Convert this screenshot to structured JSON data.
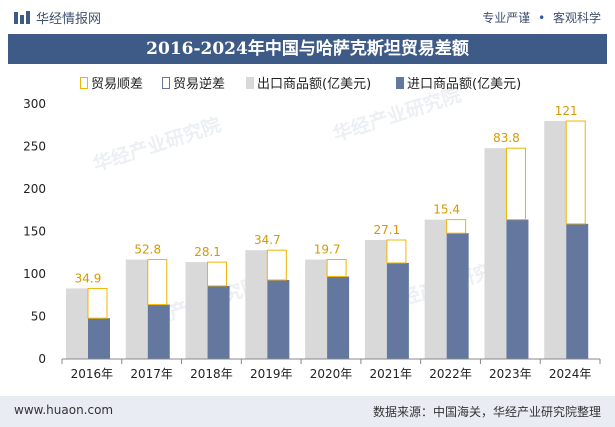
{
  "header": {
    "brand": "华经情报网",
    "tagline_left": "专业严谨",
    "tagline_right": "客观科学"
  },
  "watermark": "华经产业研究院",
  "footer": {
    "url": "www.huaon.com",
    "source": "数据来源：中国海关，华经产业研究院整理"
  },
  "colors": {
    "export": "#d9d9d9",
    "import": "#64789f",
    "surplus": "#f0b400",
    "deficit": "#64789f",
    "title_bg": "#3e5a86"
  },
  "chart_data": {
    "type": "bar",
    "title": "2016-2024年中国与哈萨克斯坦贸易差额",
    "categories": [
      "2016年",
      "2017年",
      "2018年",
      "2019年",
      "2020年",
      "2021年",
      "2022年",
      "2023年",
      "2024年"
    ],
    "series": [
      {
        "name": "出口商品额(亿美元)",
        "values": [
          83,
          117,
          114,
          128,
          117,
          140,
          164,
          248,
          280
        ]
      },
      {
        "name": "进口商品额(亿美元)",
        "values": [
          48,
          64,
          86,
          93,
          97,
          113,
          148,
          164,
          159
        ]
      }
    ],
    "balance": [
      {
        "name": "贸易顺差",
        "values": [
          34.9,
          52.8,
          28.1,
          34.7,
          19.7,
          27.1,
          15.4,
          83.8,
          121
        ]
      },
      {
        "name": "贸易逆差",
        "values": [
          null,
          null,
          null,
          null,
          null,
          null,
          null,
          null,
          null
        ]
      }
    ],
    "balance_labels": [
      "34.9",
      "52.8",
      "28.1",
      "34.7",
      "19.7",
      "27.1",
      "15.4",
      "83.8",
      "121"
    ],
    "legend": [
      "贸易顺差",
      "贸易逆差",
      "出口商品额(亿美元)",
      "进口商品额(亿美元)"
    ],
    "ylim": [
      0,
      300
    ],
    "yticks": [
      "0",
      "50",
      "100",
      "150",
      "200",
      "250",
      "300"
    ],
    "xlabel": "",
    "ylabel": ""
  }
}
